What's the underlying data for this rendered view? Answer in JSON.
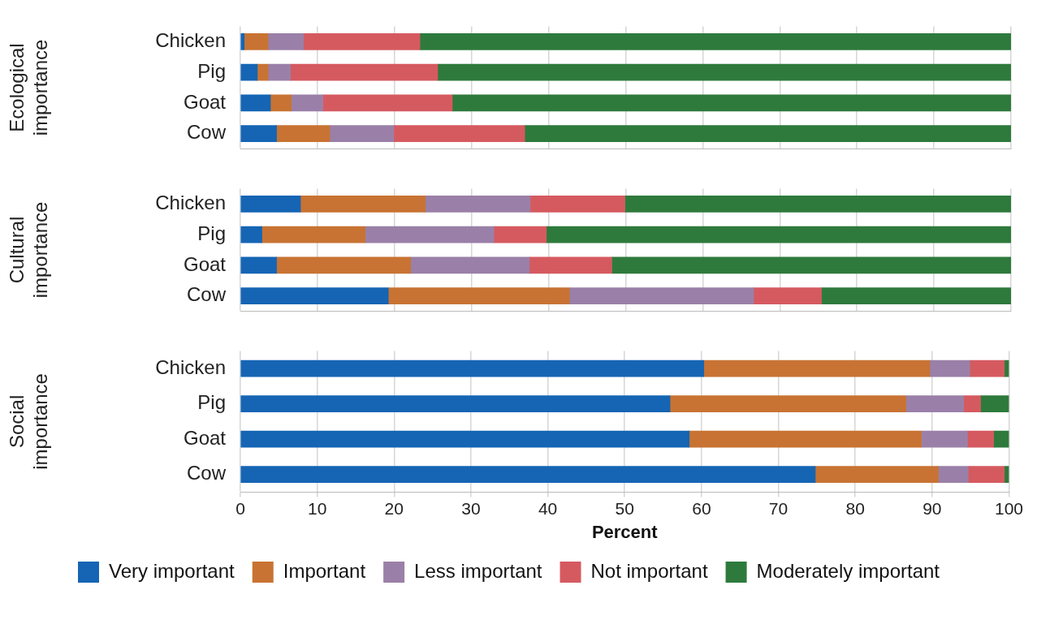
{
  "chart_data": [
    {
      "type": "bar",
      "orientation": "horizontal",
      "stacked": true,
      "ylabel": "Ecological importance",
      "categories": [
        "Chicken",
        "Pig",
        "Goat",
        "Cow"
      ],
      "xlim": [
        0,
        100
      ],
      "xticks": [
        0,
        10,
        20,
        30,
        40,
        50,
        60,
        70,
        80,
        90,
        100
      ],
      "grid": "x",
      "tick_labels": "y",
      "series": [
        {
          "color": "#1565b4",
          "values": [
            0.5,
            2.2,
            3.9,
            4.7
          ]
        },
        {
          "color": "#c87333",
          "values": [
            3.1,
            1.4,
            2.7,
            6.9
          ]
        },
        {
          "color": "#9a80a8",
          "values": [
            4.6,
            2.9,
            4.1,
            8.3
          ]
        },
        {
          "color": "#d55a60",
          "values": [
            15.1,
            19.1,
            16.8,
            17.0
          ]
        },
        {
          "color": "#2e7a3c",
          "values": [
            76.7,
            74.4,
            72.5,
            63.1
          ]
        }
      ]
    },
    {
      "type": "bar",
      "orientation": "horizontal",
      "stacked": true,
      "ylabel": "Cultural importance",
      "categories": [
        "Chicken",
        "Pig",
        "Goat",
        "Cow"
      ],
      "xlim": [
        0,
        100
      ],
      "xticks": [
        0,
        10,
        20,
        30,
        40,
        50,
        60,
        70,
        80,
        90,
        100
      ],
      "grid": "x",
      "tick_labels": "y",
      "series": [
        {
          "color": "#1565b4",
          "values": [
            7.8,
            2.8,
            4.7,
            19.2
          ]
        },
        {
          "color": "#c87333",
          "values": [
            16.2,
            13.4,
            17.4,
            23.5
          ]
        },
        {
          "color": "#9a80a8",
          "values": [
            13.6,
            16.7,
            15.4,
            23.9
          ]
        },
        {
          "color": "#d55a60",
          "values": [
            12.3,
            6.8,
            10.7,
            8.8
          ]
        },
        {
          "color": "#2e7a3c",
          "values": [
            50.1,
            60.3,
            51.8,
            24.6
          ]
        }
      ]
    },
    {
      "type": "bar",
      "orientation": "horizontal",
      "stacked": true,
      "ylabel": "Social importance",
      "xlabel": "Percent",
      "categories": [
        "Chicken",
        "Pig",
        "Goat",
        "Cow"
      ],
      "xlim": [
        0,
        100
      ],
      "xticks": [
        0,
        10,
        20,
        30,
        40,
        50,
        60,
        70,
        80,
        90,
        100
      ],
      "grid": "x",
      "legend": "bottom",
      "series": [
        {
          "name": "Very important",
          "color": "#1565b4",
          "values": [
            60.3,
            55.9,
            58.4,
            74.8
          ]
        },
        {
          "name": "Important",
          "color": "#c87333",
          "values": [
            29.4,
            30.7,
            30.2,
            16.0
          ]
        },
        {
          "name": "Less important",
          "color": "#9a80a8",
          "values": [
            5.2,
            7.5,
            6.0,
            3.9
          ]
        },
        {
          "name": "Not important",
          "color": "#d55a60",
          "values": [
            4.5,
            2.2,
            3.4,
            4.7
          ]
        },
        {
          "name": "Moderately important",
          "color": "#2e7a3c",
          "values": [
            0.6,
            3.7,
            2.0,
            0.6
          ]
        }
      ]
    }
  ]
}
